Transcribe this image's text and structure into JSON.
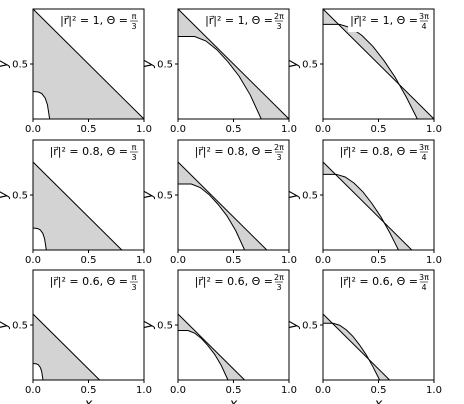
{
  "chart_data": [
    {
      "type": "line",
      "title": "|r⃗|² = 1, Θ =",
      "title_fraction": {
        "numerator": "π",
        "denominator": "3"
      },
      "ylabel": "y",
      "xlim": [
        0,
        1
      ],
      "ylim": [
        0,
        1
      ],
      "xticks": [
        {
          "value": 0,
          "label": "0.0"
        },
        0.5,
        {
          "value": 1,
          "label": "1.0"
        }
      ],
      "yticks": [
        0.5
      ],
      "fill_between": true,
      "fill_color": "#d3d3d3",
      "series": [
        {
          "color": "#000000",
          "x": [
            0,
            1
          ],
          "values": [
            1,
            0
          ]
        },
        {
          "color": "#000000",
          "x": [
            0,
            0.05,
            0.08,
            0.11,
            0.13,
            0.15
          ],
          "values": [
            0.25,
            0.245,
            0.23,
            0.19,
            0.13,
            0
          ]
        }
      ]
    },
    {
      "type": "line",
      "title": "|r⃗|² = 1, Θ =",
      "title_fraction": {
        "numerator": "2π",
        "denominator": "3"
      },
      "ylabel": "y",
      "xlim": [
        0,
        1
      ],
      "ylim": [
        0,
        1
      ],
      "xticks": [
        {
          "value": 0,
          "label": "0.0"
        },
        0.5,
        {
          "value": 1,
          "label": "1.0"
        }
      ],
      "yticks": [
        0.5
      ],
      "fill_between": true,
      "fill_color": "#d3d3d3",
      "series": [
        {
          "color": "#000000",
          "x": [
            0,
            1
          ],
          "values": [
            1,
            0
          ]
        },
        {
          "color": "#000000",
          "x": [
            0,
            0.15,
            0.25,
            0.35,
            0.45,
            0.55,
            0.65,
            0.75
          ],
          "values": [
            0.75,
            0.75,
            0.71,
            0.63,
            0.52,
            0.39,
            0.22,
            0
          ]
        }
      ]
    },
    {
      "type": "line",
      "title": "|r⃗|² = 1, Θ =",
      "title_fraction": {
        "numerator": "3π",
        "denominator": "4"
      },
      "ylabel": "y",
      "xlim": [
        0,
        1
      ],
      "ylim": [
        0,
        1
      ],
      "xticks": [
        {
          "value": 0,
          "label": "0.0"
        },
        0.5,
        {
          "value": 1,
          "label": "1.0"
        }
      ],
      "yticks": [
        0.5
      ],
      "fill_between": true,
      "fill_color": "#d3d3d3",
      "series": [
        {
          "color": "#000000",
          "x": [
            0,
            1
          ],
          "values": [
            1,
            0
          ]
        },
        {
          "color": "#000000",
          "x": [
            0,
            0.15,
            0.25,
            0.35,
            0.45,
            0.55,
            0.65,
            0.75,
            0.8,
            0.85
          ],
          "values": [
            0.86,
            0.86,
            0.83,
            0.76,
            0.66,
            0.53,
            0.38,
            0.2,
            0.1,
            0
          ]
        }
      ]
    },
    {
      "type": "line",
      "title": "|r⃗|² = 0.8, Θ =",
      "title_fraction": {
        "numerator": "π",
        "denominator": "3"
      },
      "ylabel": "y",
      "xlim": [
        0,
        1
      ],
      "ylim": [
        0,
        1
      ],
      "xticks": [
        {
          "value": 0,
          "label": "0.0"
        },
        0.5,
        {
          "value": 1,
          "label": "1.0"
        }
      ],
      "yticks": [
        0.5
      ],
      "fill_between": true,
      "fill_color": "#d3d3d3",
      "series": [
        {
          "color": "#000000",
          "x": [
            0,
            0.8
          ],
          "values": [
            0.8,
            0
          ]
        },
        {
          "color": "#000000",
          "x": [
            0,
            0.04,
            0.064,
            0.088,
            0.104,
            0.12
          ],
          "values": [
            0.2,
            0.196,
            0.184,
            0.152,
            0.104,
            0
          ]
        }
      ]
    },
    {
      "type": "line",
      "title": "|r⃗|² = 0.8, Θ =",
      "title_fraction": {
        "numerator": "2π",
        "denominator": "3"
      },
      "ylabel": "y",
      "xlim": [
        0,
        1
      ],
      "ylim": [
        0,
        1
      ],
      "xticks": [
        {
          "value": 0,
          "label": "0.0"
        },
        0.5,
        {
          "value": 1,
          "label": "1.0"
        }
      ],
      "yticks": [
        0.5
      ],
      "fill_between": true,
      "fill_color": "#d3d3d3",
      "series": [
        {
          "color": "#000000",
          "x": [
            0,
            0.8
          ],
          "values": [
            0.8,
            0
          ]
        },
        {
          "color": "#000000",
          "x": [
            0,
            0.12,
            0.2,
            0.28,
            0.36,
            0.44,
            0.52,
            0.6
          ],
          "values": [
            0.6,
            0.6,
            0.568,
            0.504,
            0.416,
            0.312,
            0.176,
            0
          ]
        }
      ]
    },
    {
      "type": "line",
      "title": "|r⃗|² = 0.8, Θ =",
      "title_fraction": {
        "numerator": "3π",
        "denominator": "4"
      },
      "ylabel": "y",
      "xlim": [
        0,
        1
      ],
      "ylim": [
        0,
        1
      ],
      "xticks": [
        {
          "value": 0,
          "label": "0.0"
        },
        0.5,
        {
          "value": 1,
          "label": "1.0"
        }
      ],
      "yticks": [
        0.5
      ],
      "fill_between": true,
      "fill_color": "#d3d3d3",
      "series": [
        {
          "color": "#000000",
          "x": [
            0,
            0.8
          ],
          "values": [
            0.8,
            0
          ]
        },
        {
          "color": "#000000",
          "x": [
            0,
            0.12,
            0.2,
            0.28,
            0.36,
            0.44,
            0.52,
            0.6,
            0.64,
            0.68
          ],
          "values": [
            0.688,
            0.688,
            0.664,
            0.608,
            0.528,
            0.424,
            0.304,
            0.16,
            0.08,
            0
          ]
        }
      ]
    },
    {
      "type": "line",
      "title": "|r⃗|² = 0.6, Θ =",
      "title_fraction": {
        "numerator": "π",
        "denominator": "3"
      },
      "ylabel": "y",
      "xlabel": "x",
      "xlim": [
        0,
        1
      ],
      "ylim": [
        0,
        1
      ],
      "xticks": [
        {
          "value": 0,
          "label": "0.0"
        },
        0.5,
        {
          "value": 1,
          "label": "1.0"
        }
      ],
      "yticks": [
        0.5
      ],
      "fill_between": true,
      "fill_color": "#d3d3d3",
      "series": [
        {
          "color": "#000000",
          "x": [
            0,
            0.6
          ],
          "values": [
            0.6,
            0
          ]
        },
        {
          "color": "#000000",
          "x": [
            0,
            0.03,
            0.048,
            0.066,
            0.078,
            0.09
          ],
          "values": [
            0.15,
            0.147,
            0.138,
            0.114,
            0.078,
            0
          ]
        }
      ]
    },
    {
      "type": "line",
      "title": "|r⃗|² = 0.6, Θ =",
      "title_fraction": {
        "numerator": "2π",
        "denominator": "3"
      },
      "ylabel": "y",
      "xlabel": "x",
      "xlim": [
        0,
        1
      ],
      "ylim": [
        0,
        1
      ],
      "xticks": [
        {
          "value": 0,
          "label": "0.0"
        },
        0.5,
        {
          "value": 1,
          "label": "1.0"
        }
      ],
      "yticks": [
        0.5
      ],
      "fill_between": true,
      "fill_color": "#d3d3d3",
      "series": [
        {
          "color": "#000000",
          "x": [
            0,
            0.6
          ],
          "values": [
            0.6,
            0
          ]
        },
        {
          "color": "#000000",
          "x": [
            0,
            0.09,
            0.15,
            0.21,
            0.27,
            0.33,
            0.39,
            0.45
          ],
          "values": [
            0.45,
            0.45,
            0.426,
            0.378,
            0.312,
            0.234,
            0.132,
            0
          ]
        }
      ]
    },
    {
      "type": "line",
      "title": "|r⃗|² = 0.6, Θ =",
      "title_fraction": {
        "numerator": "3π",
        "denominator": "4"
      },
      "ylabel": "y",
      "xlabel": "x",
      "xlim": [
        0,
        1
      ],
      "ylim": [
        0,
        1
      ],
      "xticks": [
        {
          "value": 0,
          "label": "0.0"
        },
        0.5,
        {
          "value": 1,
          "label": "1.0"
        }
      ],
      "yticks": [
        0.5
      ],
      "fill_between": true,
      "fill_color": "#d3d3d3",
      "series": [
        {
          "color": "#000000",
          "x": [
            0,
            0.6
          ],
          "values": [
            0.6,
            0
          ]
        },
        {
          "color": "#000000",
          "x": [
            0,
            0.09,
            0.15,
            0.21,
            0.27,
            0.33,
            0.39,
            0.45,
            0.48,
            0.51
          ],
          "values": [
            0.516,
            0.516,
            0.498,
            0.456,
            0.396,
            0.318,
            0.228,
            0.12,
            0.06,
            0
          ]
        }
      ]
    }
  ]
}
